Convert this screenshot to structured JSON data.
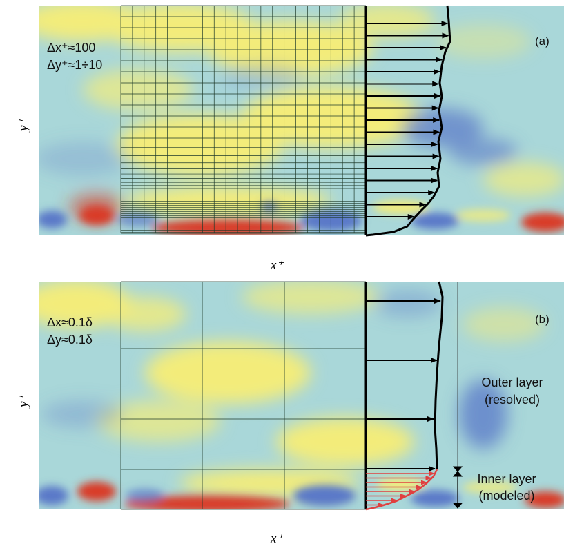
{
  "panel_a": {
    "label": "(a)",
    "grid_spacing_x": "Δx⁺≈100",
    "grid_spacing_y": "Δy⁺≈1÷10",
    "x_axis_label": "x⁺",
    "y_axis_label": "y⁺"
  },
  "panel_b": {
    "label": "(b)",
    "grid_spacing_x": "Δx≈0.1δ",
    "grid_spacing_y": "Δy≈0.1δ",
    "x_axis_label": "x⁺",
    "y_axis_label": "y⁺",
    "outer_layer_line1": "Outer layer",
    "outer_layer_line2": "(resolved)",
    "inner_layer_line1": "Inner layer",
    "inner_layer_line2": "(modeled)"
  },
  "colors": {
    "field_base": "#a9d7d9",
    "field_yellow": "#f3ec7a",
    "field_blue": "#5a78c8",
    "field_red": "#d93a26",
    "grid_line": "#1e3a2a",
    "profile": "#000000",
    "modeled_profile": "#e04040"
  },
  "icons": {
    "velocity_arrow": "arrow-right-icon",
    "extent_marker": "double-arrow-vertical-icon"
  }
}
